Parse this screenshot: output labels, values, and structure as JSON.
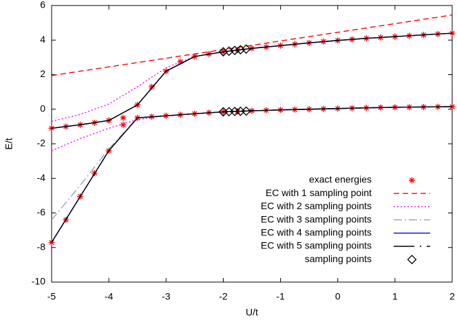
{
  "chart_data": {
    "type": "line",
    "xlabel": "U/t",
    "ylabel": "E/t",
    "xlim": [
      -5,
      2
    ],
    "ylim": [
      -10,
      6
    ],
    "xticks": [
      -5,
      -4,
      -3,
      -2,
      -1,
      0,
      1,
      2
    ],
    "yticks": [
      -10,
      -8,
      -6,
      -4,
      -2,
      0,
      2,
      4,
      6
    ],
    "legend": "upper right",
    "series": [
      {
        "name": "exact energies",
        "color": "#ff0000",
        "style": "asterisk",
        "x": [
          -5,
          -4.75,
          -4.5,
          -4.25,
          -4,
          -3.75,
          -3.5,
          -3.25,
          -3,
          -2.75,
          -2.5,
          -2.25,
          -2,
          -1.75,
          -1.5,
          -1.25,
          -1,
          -0.75,
          -0.5,
          -0.25,
          0,
          0.25,
          0.5,
          0.75,
          1,
          1.25,
          1.5,
          1.75,
          2
        ],
        "branches": [
          [
            -7.7,
            -6.4,
            -5.05,
            -3.7,
            -2.4,
            -0.9,
            -0.5,
            -0.43,
            -0.38,
            -0.32,
            -0.26,
            -0.2,
            -0.15,
            -0.12,
            -0.09,
            -0.06,
            -0.04,
            -0.02,
            0,
            0.02,
            0.04,
            0.06,
            0.08,
            0.1,
            0.11,
            0.12,
            0.13,
            0.14,
            0.15
          ],
          [
            -1.1,
            -1.0,
            -0.9,
            -0.78,
            -0.65,
            -0.5,
            0.25,
            1.3,
            2.2,
            2.75,
            3.05,
            3.2,
            3.32,
            3.42,
            3.52,
            3.6,
            3.68,
            3.76,
            3.84,
            3.92,
            3.98,
            4.04,
            4.1,
            4.15,
            4.2,
            4.25,
            4.3,
            4.35,
            4.4
          ]
        ]
      },
      {
        "name": "EC with 1 sampling point",
        "color": "#ff0000",
        "style": "dashed",
        "x": [
          -5,
          -4.5,
          -4,
          -3.5,
          -3,
          -2.5,
          -2,
          -1.5,
          -1,
          -0.5,
          0,
          0.5,
          1,
          1.5,
          2
        ],
        "branches": [
          [
            1.95,
            2.2,
            2.45,
            2.7,
            2.95,
            3.2,
            3.45,
            3.7,
            3.95,
            4.2,
            4.45,
            4.7,
            4.95,
            5.2,
            5.45
          ]
        ]
      },
      {
        "name": "EC with 2 sampling points",
        "color": "#ff00ff",
        "style": "dotted",
        "x": [
          -5,
          -4.5,
          -4,
          -3.5,
          -3,
          -2.5,
          -2,
          -1.5,
          -1,
          -0.5,
          0,
          0.5,
          1,
          1.5,
          2
        ],
        "branches": [
          [
            -2.4,
            -1.7,
            -1.1,
            -0.6,
            -0.38,
            -0.26,
            -0.15,
            -0.09,
            -0.04,
            0,
            0.04,
            0.08,
            0.11,
            0.13,
            0.15
          ],
          [
            -0.7,
            -0.3,
            0.3,
            1.3,
            2.4,
            3.05,
            3.32,
            3.52,
            3.68,
            3.84,
            3.98,
            4.1,
            4.2,
            4.3,
            4.4
          ]
        ]
      },
      {
        "name": "EC with 3 sampling points",
        "color": "#a0a0a0",
        "style": "dashdot",
        "x": [
          -5,
          -4.5,
          -4,
          -3.5,
          -3,
          -2.5,
          -2,
          -1.5,
          -1,
          -0.5,
          0,
          0.5,
          1,
          1.5,
          2
        ],
        "branches": [
          [
            -6.4,
            -4.4,
            -2.3,
            -0.5,
            -0.38,
            -0.26,
            -0.15,
            -0.09,
            -0.04,
            0,
            0.04,
            0.08,
            0.11,
            0.13,
            0.15
          ],
          [
            -1.1,
            -0.9,
            -0.65,
            0.25,
            2.2,
            3.05,
            3.32,
            3.52,
            3.68,
            3.84,
            3.98,
            4.1,
            4.2,
            4.3,
            4.4
          ]
        ]
      },
      {
        "name": "EC with 4 sampling points",
        "color": "#0000ff",
        "style": "solid",
        "x": [
          -5,
          -4.5,
          -4,
          -3.5,
          -3,
          -2.5,
          -2,
          -1.5,
          -1,
          -0.5,
          0,
          0.5,
          1,
          1.5,
          2
        ],
        "branches": [
          [
            -7.7,
            -5.05,
            -2.4,
            -0.5,
            -0.38,
            -0.26,
            -0.15,
            -0.09,
            -0.04,
            0,
            0.04,
            0.08,
            0.11,
            0.13,
            0.15
          ],
          [
            -1.1,
            -0.9,
            -0.65,
            0.25,
            2.2,
            3.05,
            3.32,
            3.52,
            3.68,
            3.84,
            3.98,
            4.1,
            4.2,
            4.3,
            4.4
          ]
        ]
      },
      {
        "name": "EC with 5 sampling points",
        "color": "#000000",
        "style": "longdashdot",
        "x": [
          -5,
          -4.5,
          -4,
          -3.5,
          -3,
          -2.5,
          -2,
          -1.5,
          -1,
          -0.5,
          0,
          0.5,
          1,
          1.5,
          2
        ],
        "branches": [
          [
            -7.7,
            -5.05,
            -2.4,
            -0.5,
            -0.38,
            -0.26,
            -0.15,
            -0.09,
            -0.04,
            0,
            0.04,
            0.08,
            0.11,
            0.13,
            0.15
          ],
          [
            -1.1,
            -0.9,
            -0.65,
            0.25,
            2.2,
            3.05,
            3.32,
            3.52,
            3.68,
            3.84,
            3.98,
            4.1,
            4.2,
            4.3,
            4.4
          ]
        ]
      },
      {
        "name": "sampling points",
        "color": "#000000",
        "style": "diamond",
        "x": [
          -2,
          -1.9,
          -1.8,
          -1.7,
          -1.6
        ],
        "branches": [
          [
            -0.15,
            -0.14,
            -0.13,
            -0.12,
            -0.11
          ],
          [
            3.32,
            3.36,
            3.4,
            3.44,
            3.48
          ]
        ]
      }
    ]
  }
}
